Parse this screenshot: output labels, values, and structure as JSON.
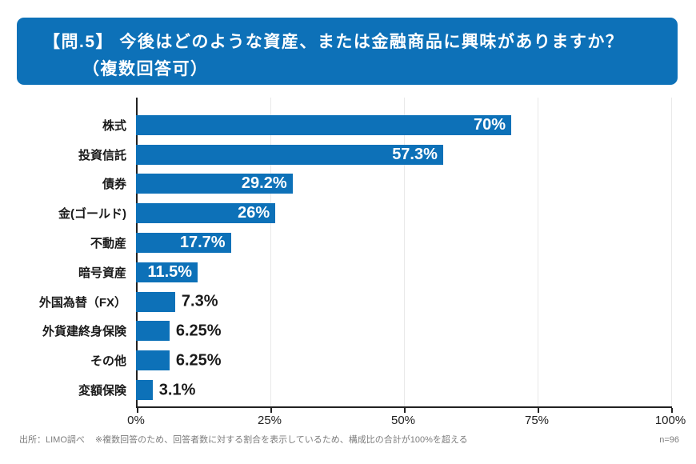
{
  "header": {
    "line1": "【問.5】 今後はどのような資産、または金融商品に興味がありますか？",
    "line2": "（複数回答可）"
  },
  "chart_data": {
    "type": "bar",
    "orientation": "horizontal",
    "title": "【問.5】今後はどのような資産、または金融商品に興味がありますか？（複数回答可）",
    "categories": [
      "株式",
      "投資信託",
      "債券",
      "金(ゴールド)",
      "不動産",
      "暗号資産",
      "外国為替（FX）",
      "外貨建終身保険",
      "その他",
      "変額保険"
    ],
    "values": [
      70,
      57.3,
      29.2,
      26,
      17.7,
      11.5,
      7.3,
      6.25,
      6.25,
      3.1
    ],
    "value_labels": [
      "70%",
      "57.3%",
      "29.2%",
      "26%",
      "17.7%",
      "11.5%",
      "7.3%",
      "6.25%",
      "6.25%",
      "3.1%"
    ],
    "x_ticks": [
      "0%",
      "25%",
      "50%",
      "75%",
      "100%"
    ],
    "x_tick_values": [
      0,
      25,
      50,
      75,
      100
    ],
    "xlim": [
      0,
      100
    ],
    "grid": true,
    "legend": false,
    "bar_color": "#0d71b8",
    "inside_label_color": "#ffffff",
    "outside_label_color": "#1a1a1a",
    "inside_label_min_value": 10
  },
  "footer": {
    "source": "出所：LIMO調べ",
    "note": "※複数回答のため、回答者数に対する割合を表示しているため、構成比の合計が100%を超える",
    "sample": "n=96"
  }
}
